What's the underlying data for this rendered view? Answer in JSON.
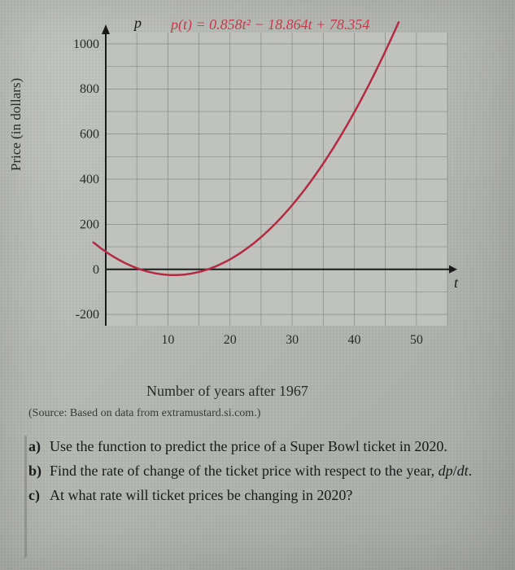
{
  "chart": {
    "type": "line",
    "equation_text": "p(t) = 0.858t² − 18.864t + 78.354",
    "equation_color": "#c63a4a",
    "y_axis_title": "p",
    "x_axis_title": "t",
    "ylabel": "Price (in dollars)",
    "xlabel": "Number of years after 1967",
    "xlim": [
      0,
      55
    ],
    "ylim": [
      -250,
      1050
    ],
    "xticks": [
      10,
      20,
      30,
      40,
      50
    ],
    "yticks": [
      -200,
      0,
      200,
      400,
      600,
      800,
      1000
    ],
    "grid_color": "#888a85",
    "background_color": "#c0c2bd",
    "curve_color": "#b52a42",
    "curve_width": 2.5,
    "axis_color": "#1a1a1a",
    "tick_fontsize": 16,
    "label_fontsize": 17,
    "curve_points_t": [
      -2,
      0,
      5,
      10,
      11,
      15,
      20,
      25,
      30,
      35,
      40,
      45,
      50,
      52
    ],
    "curve_a": 0.858,
    "curve_b": -18.864,
    "curve_c": 78.354
  },
  "source_text": "(Source: Based on data from extramustard.si.com.)",
  "questions": {
    "a": {
      "label": "a)",
      "text": "Use the function to predict the price of a Super Bowl ticket in 2020."
    },
    "b": {
      "label": "b)",
      "text": "Find the rate of change of the ticket price with respect to the year, dp/dt."
    },
    "c": {
      "label": "c)",
      "text": "At what rate will ticket prices be changing in 2020?"
    }
  }
}
